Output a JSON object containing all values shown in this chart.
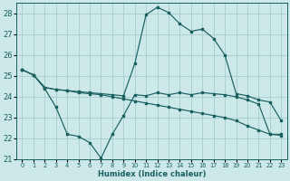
{
  "xlabel": "Humidex (Indice chaleur)",
  "bg_color": "#cce8e8",
  "line_color": "#1a6060",
  "grid_color": "#aad0d0",
  "xlim": [
    -0.5,
    23.5
  ],
  "ylim": [
    21,
    28.5
  ],
  "yticks": [
    21,
    22,
    23,
    24,
    25,
    26,
    27,
    28
  ],
  "xticks": [
    0,
    1,
    2,
    3,
    4,
    5,
    6,
    7,
    8,
    9,
    10,
    11,
    12,
    13,
    14,
    15,
    16,
    17,
    18,
    19,
    20,
    21,
    22,
    23
  ],
  "line1_x": [
    0,
    1,
    2,
    3,
    4,
    5,
    6,
    7,
    8,
    9,
    10,
    11,
    12,
    13,
    14,
    15,
    16,
    17,
    18,
    19,
    20,
    21,
    22,
    23
  ],
  "line1_y": [
    25.3,
    25.05,
    24.4,
    23.5,
    22.2,
    22.1,
    21.8,
    21.05,
    22.2,
    23.1,
    24.1,
    24.05,
    24.2,
    24.1,
    24.2,
    24.1,
    24.2,
    24.15,
    24.1,
    24.0,
    23.85,
    23.65,
    22.2,
    22.2
  ],
  "line2_x": [
    0,
    1,
    2,
    3,
    4,
    5,
    6,
    7,
    8,
    9,
    10,
    11,
    12,
    13,
    14,
    15,
    16,
    17,
    18,
    19,
    20,
    21,
    22,
    23
  ],
  "line2_y": [
    25.3,
    25.05,
    24.45,
    24.35,
    24.3,
    24.25,
    24.2,
    24.15,
    24.1,
    24.05,
    25.6,
    27.95,
    28.3,
    28.05,
    27.5,
    27.15,
    27.25,
    26.8,
    26.0,
    24.15,
    24.05,
    23.85,
    23.75,
    22.85
  ],
  "line3_x": [
    0,
    1,
    2,
    3,
    4,
    5,
    6,
    7,
    8,
    9,
    10,
    11,
    12,
    13,
    14,
    15,
    16,
    17,
    18,
    19,
    20,
    21,
    22,
    23
  ],
  "line3_y": [
    25.3,
    25.05,
    24.45,
    24.35,
    24.3,
    24.2,
    24.15,
    24.1,
    24.0,
    23.9,
    23.8,
    23.7,
    23.6,
    23.5,
    23.4,
    23.3,
    23.2,
    23.1,
    23.0,
    22.85,
    22.6,
    22.4,
    22.2,
    22.15
  ]
}
